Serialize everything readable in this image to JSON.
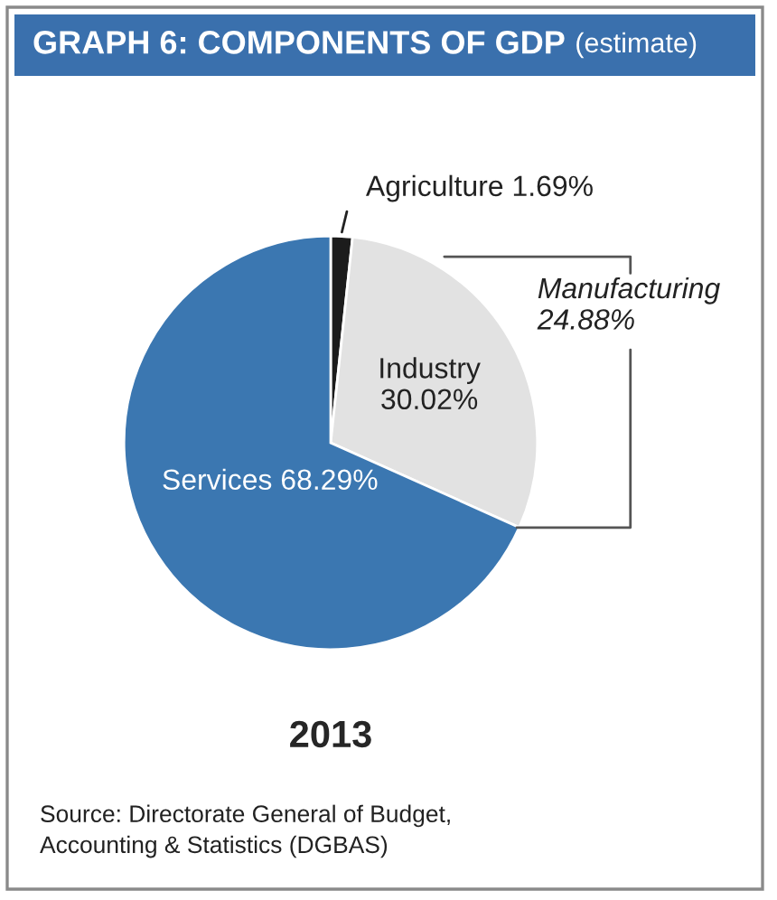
{
  "chart_data": {
    "type": "pie",
    "title": "GRAPH 6: COMPONENTS OF GDP",
    "subtitle": "(estimate)",
    "xlabel": "2013",
    "categories": [
      "Agriculture",
      "Industry",
      "Services"
    ],
    "values": [
      1.69,
      30.02,
      68.29
    ],
    "colors": [
      "#1c1c1c",
      "#e2e2e2",
      "#3b77b1"
    ],
    "value_labels": [
      "1.69%",
      "30.02%",
      "68.29%"
    ],
    "annotations": [
      "Manufacturing\n24.88%",
      "Source: Directorate General of Budget,\nAccounting & Statistics (DGBAS)"
    ],
    "legend": false
  }
}
